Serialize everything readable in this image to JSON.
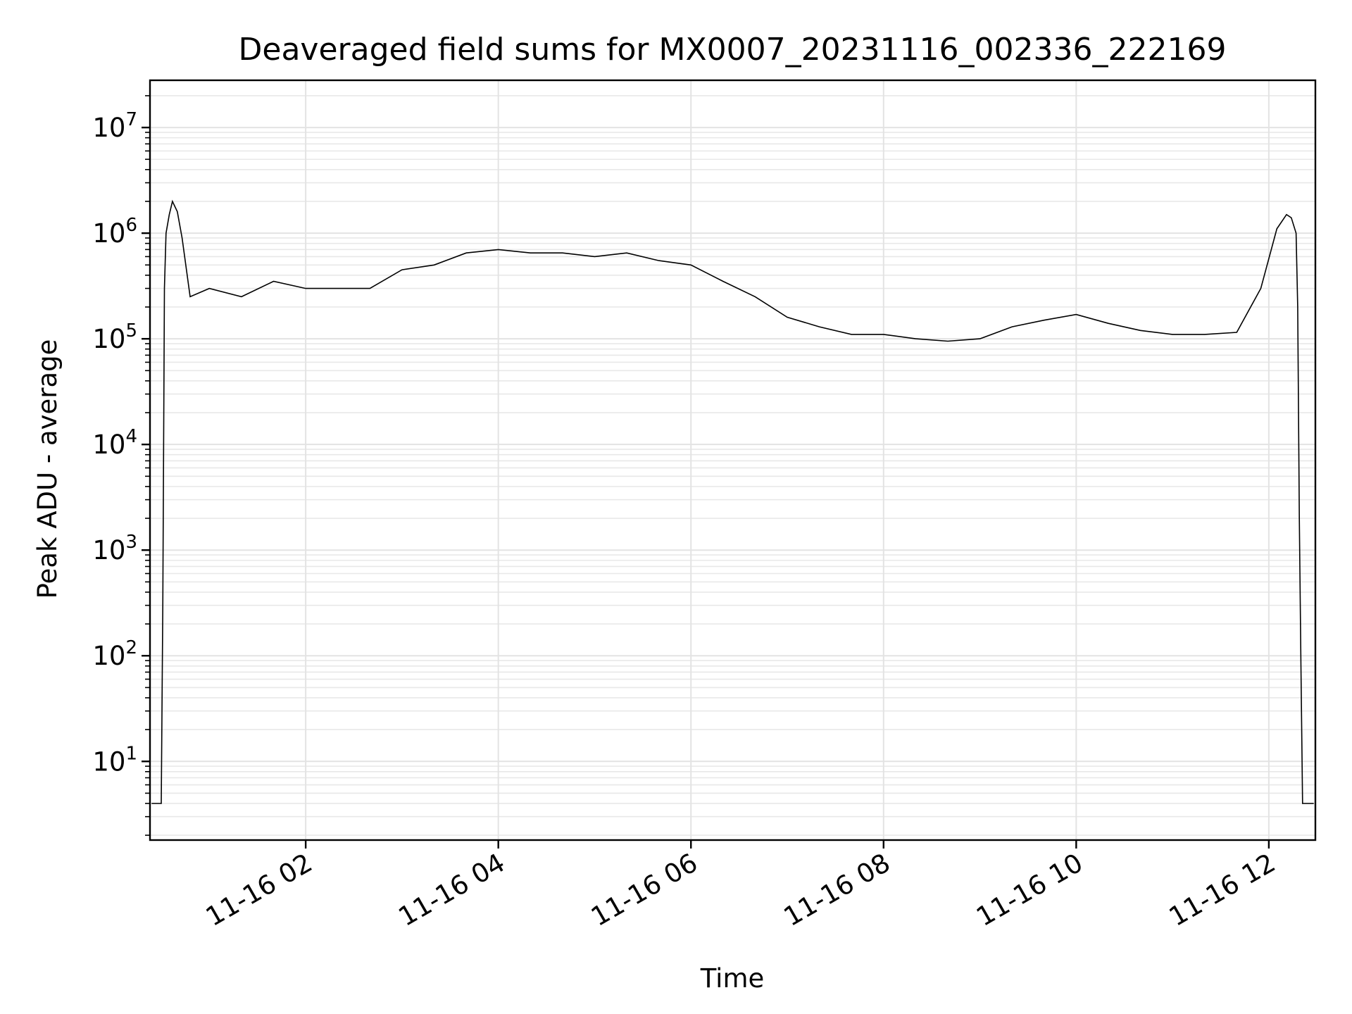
{
  "chart_data": {
    "type": "line",
    "title": "Deaveraged field sums for MX0007_20231116_002336_222169",
    "xlabel": "Time",
    "ylabel": "Peak ADU - average",
    "yscale": "log",
    "xlim": [
      "2023-11-16 00:23",
      "2023-11-16 12:29"
    ],
    "ylim": [
      1.8,
      28000000
    ],
    "grid": "major and minor",
    "x_ticks": [
      {
        "value": "2023-11-16 02:00",
        "label": "11-16 02"
      },
      {
        "value": "2023-11-16 04:00",
        "label": "11-16 04"
      },
      {
        "value": "2023-11-16 06:00",
        "label": "11-16 06"
      },
      {
        "value": "2023-11-16 08:00",
        "label": "11-16 08"
      },
      {
        "value": "2023-11-16 10:00",
        "label": "11-16 10"
      },
      {
        "value": "2023-11-16 12:00",
        "label": "11-16 12"
      }
    ],
    "y_ticks": [
      {
        "value": 10,
        "base": "10",
        "exp": "1"
      },
      {
        "value": 100,
        "base": "10",
        "exp": "2"
      },
      {
        "value": 1000,
        "base": "10",
        "exp": "3"
      },
      {
        "value": 10000,
        "base": "10",
        "exp": "4"
      },
      {
        "value": 100000,
        "base": "10",
        "exp": "5"
      },
      {
        "value": 1000000,
        "base": "10",
        "exp": "6"
      },
      {
        "value": 10000000,
        "base": "10",
        "exp": "7"
      }
    ],
    "series": [
      {
        "color": "#000000",
        "x": [
          "2023-11-16 00:24",
          "2023-11-16 00:30",
          "2023-11-16 00:31",
          "2023-11-16 00:32",
          "2023-11-16 00:33",
          "2023-11-16 00:35",
          "2023-11-16 00:37",
          "2023-11-16 00:40",
          "2023-11-16 00:43",
          "2023-11-16 00:48",
          "2023-11-16 01:00",
          "2023-11-16 01:20",
          "2023-11-16 01:40",
          "2023-11-16 02:00",
          "2023-11-16 02:20",
          "2023-11-16 02:40",
          "2023-11-16 03:00",
          "2023-11-16 03:20",
          "2023-11-16 03:40",
          "2023-11-16 04:00",
          "2023-11-16 04:20",
          "2023-11-16 04:40",
          "2023-11-16 05:00",
          "2023-11-16 05:20",
          "2023-11-16 05:40",
          "2023-11-16 06:00",
          "2023-11-16 06:20",
          "2023-11-16 06:40",
          "2023-11-16 07:00",
          "2023-11-16 07:20",
          "2023-11-16 07:40",
          "2023-11-16 08:00",
          "2023-11-16 08:20",
          "2023-11-16 08:40",
          "2023-11-16 09:00",
          "2023-11-16 09:20",
          "2023-11-16 09:40",
          "2023-11-16 10:00",
          "2023-11-16 10:20",
          "2023-11-16 10:40",
          "2023-11-16 11:00",
          "2023-11-16 11:20",
          "2023-11-16 11:40",
          "2023-11-16 11:55",
          "2023-11-16 12:05",
          "2023-11-16 12:11",
          "2023-11-16 12:14",
          "2023-11-16 12:17",
          "2023-11-16 12:18",
          "2023-11-16 12:19",
          "2023-11-16 12:20",
          "2023-11-16 12:21",
          "2023-11-16 12:28"
        ],
        "y": [
          4,
          4,
          300,
          300000,
          1000000,
          1500000,
          2000000,
          1600000,
          900000,
          250000,
          300000,
          250000,
          350000,
          300000,
          300000,
          300000,
          450000,
          500000,
          650000,
          700000,
          650000,
          650000,
          600000,
          650000,
          550000,
          500000,
          350000,
          250000,
          160000,
          130000,
          110000,
          110000,
          100000,
          95000,
          100000,
          130000,
          150000,
          170000,
          140000,
          120000,
          110000,
          110000,
          115000,
          300000,
          1100000,
          1500000,
          1400000,
          1000000,
          200000,
          2000,
          80,
          4,
          4
        ]
      }
    ]
  }
}
